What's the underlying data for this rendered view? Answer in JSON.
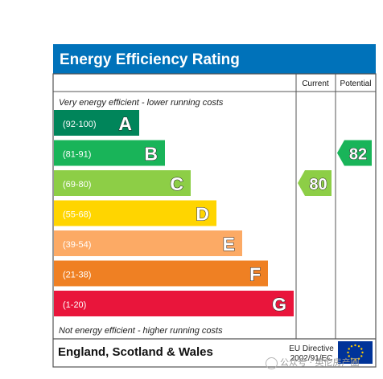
{
  "title": "Energy Efficiency Rating",
  "columns": {
    "current": "Current",
    "potential": "Potential"
  },
  "top_note": "Very energy efficient - lower running costs",
  "bottom_note": "Not energy efficient - higher running costs",
  "region": "England, Scotland & Wales",
  "directive": {
    "line1": "EU Directive",
    "line2": "2002/91/EC"
  },
  "flag_icon": "eu-flag-icon",
  "watermark": "公众号 · 英伦房产圈",
  "chart_data": {
    "type": "bar",
    "categories": [
      "A",
      "B",
      "C",
      "D",
      "E",
      "F",
      "G"
    ],
    "bands": [
      {
        "letter": "A",
        "range": "(92-100)",
        "color": "#00855a"
      },
      {
        "letter": "B",
        "range": "(81-91)",
        "color": "#19b459"
      },
      {
        "letter": "C",
        "range": "(69-80)",
        "color": "#8dce46"
      },
      {
        "letter": "D",
        "range": "(55-68)",
        "color": "#ffd500"
      },
      {
        "letter": "E",
        "range": "(39-54)",
        "color": "#fcaa65"
      },
      {
        "letter": "F",
        "range": "(21-38)",
        "color": "#ef8023"
      },
      {
        "letter": "G",
        "range": "(1-20)",
        "color": "#e9153b"
      }
    ],
    "current": {
      "value": 80,
      "band": "C",
      "color": "#8dce46"
    },
    "potential": {
      "value": 82,
      "band": "B",
      "color": "#19b459"
    }
  },
  "colors": {
    "header_bg": "#0072ba",
    "header_text": "#ffffff",
    "border": "#555555"
  }
}
